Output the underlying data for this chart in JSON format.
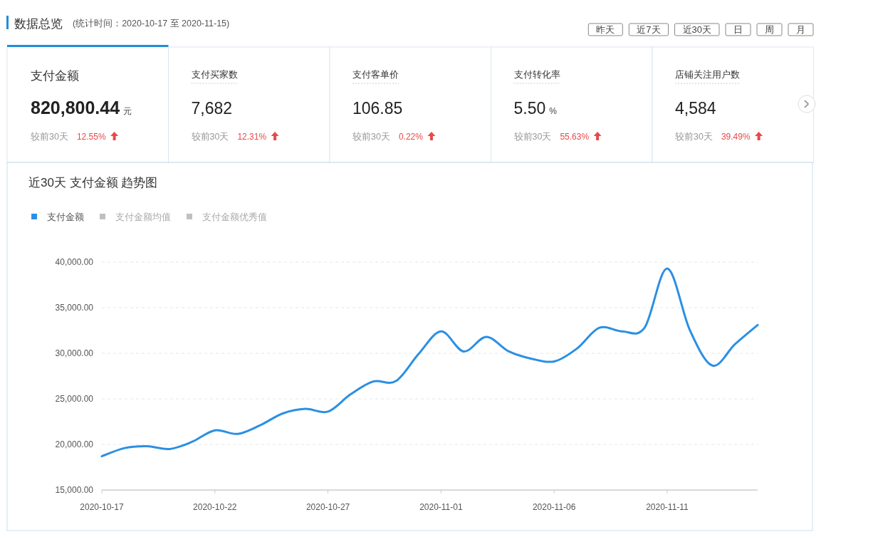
{
  "chart_data": [
    {
      "type": "other",
      "title": "数据总览",
      "subtitle": "(统计时间：2020-10-17 至 2020-11-15)",
      "annotations": [
        "昨天",
        "近7天",
        "近30天",
        "日",
        "周",
        "月"
      ]
    },
    {
      "type": "other",
      "title": "支付金额",
      "annotations": [
        "820,800.44",
        "较前30天",
        "12.55%",
        "元"
      ]
    },
    {
      "type": "other",
      "title": "支付买家数",
      "annotations": [
        "7,682",
        "较前30天",
        "12.31%"
      ]
    },
    {
      "type": "other",
      "title": "支付客单价",
      "annotations": [
        "106.85",
        "较前30天",
        "0.22%"
      ]
    },
    {
      "type": "other",
      "title": "支付转化率",
      "annotations": [
        "5.50",
        "较前30天",
        "55.63%",
        "%"
      ]
    },
    {
      "type": "other",
      "title": "店铺关注用户数",
      "annotations": [
        "4,584",
        "较前30天",
        "39.49%"
      ]
    },
    {
      "type": "line",
      "title": "近30天 支付金额 趋势图",
      "x": [
        "2020-10-17",
        "2020-10-18",
        "2020-10-19",
        "2020-10-20",
        "2020-10-21",
        "2020-10-22",
        "2020-10-23",
        "2020-10-24",
        "2020-10-25",
        "2020-10-26",
        "2020-10-27",
        "2020-10-28",
        "2020-10-29",
        "2020-10-30",
        "2020-10-31",
        "2020-11-01",
        "2020-11-02",
        "2020-11-03",
        "2020-11-04",
        "2020-11-05",
        "2020-11-06",
        "2020-11-07",
        "2020-11-08",
        "2020-11-09",
        "2020-11-10",
        "2020-11-11",
        "2020-11-12",
        "2020-11-13",
        "2020-11-14",
        "2020-11-15"
      ],
      "series": [
        {
          "name": "支付金额",
          "color": "#2b8fe3",
          "values": [
            18700,
            19600,
            19800,
            19500,
            20300,
            21550,
            21150,
            22100,
            23400,
            23900,
            23600,
            25500,
            26900,
            26950,
            29900,
            32400,
            30200,
            31800,
            30200,
            29400,
            29100,
            30500,
            32800,
            32400,
            32800,
            39300,
            32550,
            28650,
            31000,
            33100
          ]
        },
        {
          "name": "支付金额均值",
          "color": "#c0c0c0",
          "values": [
            null,
            null,
            null,
            null,
            null,
            null,
            null,
            null,
            null,
            null,
            null,
            null,
            null,
            null,
            null,
            null,
            null,
            null,
            null,
            null,
            null,
            null,
            null,
            null,
            null,
            null,
            null,
            null,
            null,
            null
          ]
        },
        {
          "name": "支付金额优秀值",
          "color": "#c0c0c0",
          "values": [
            null,
            null,
            null,
            null,
            null,
            null,
            null,
            null,
            null,
            null,
            null,
            null,
            null,
            null,
            null,
            null,
            null,
            null,
            null,
            null,
            null,
            null,
            null,
            null,
            null,
            null,
            null,
            null,
            null,
            null
          ]
        }
      ],
      "xlim": [
        "2020-10-17",
        "2020-11-15"
      ],
      "xticks": [
        "2020-10-17",
        "2020-10-22",
        "2020-10-27",
        "2020-11-01",
        "2020-11-06",
        "2020-11-11"
      ],
      "ylim": [
        15000,
        40000
      ],
      "yticks": [
        {
          "value": 15000,
          "label": "15,000.00"
        },
        {
          "value": 20000,
          "label": "20,000.00"
        },
        {
          "value": 25000,
          "label": "25,000.00"
        },
        {
          "value": 30000,
          "label": "30,000.00"
        },
        {
          "value": 35000,
          "label": "35,000.00"
        },
        {
          "value": 40000,
          "label": "40,000.00"
        }
      ],
      "grid": "y",
      "legend": "top left",
      "line_style": "solid",
      "marker": "none"
    }
  ]
}
